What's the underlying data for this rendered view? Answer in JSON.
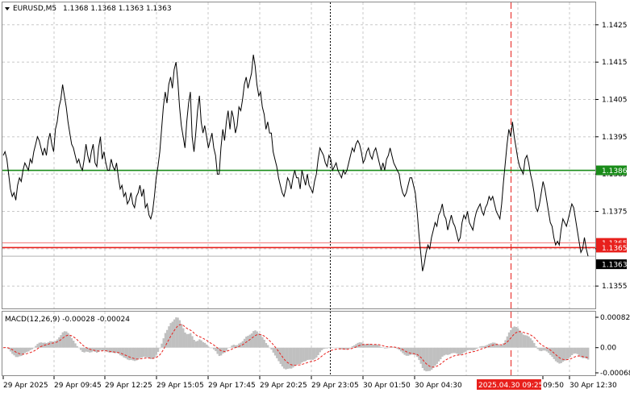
{
  "header": {
    "symbol": "EURUSD,M5",
    "ohlc": "1.1368 1.1368 1.1363 1.1363"
  },
  "price_axis": {
    "ticks": [
      "1.1425",
      "1.1415",
      "1.1405",
      "1.1395",
      "1.1385",
      "1.1375",
      "1.1365",
      "1.1355"
    ]
  },
  "levels": {
    "green": {
      "label": "1.1386",
      "price": 1.1386,
      "color": "#1a8c1a"
    },
    "red": {
      "label": "1.1365",
      "price": 1.13653,
      "color": "#e8201c"
    },
    "red_faint": {
      "label": "1.1365",
      "price": 1.13657,
      "color": "#e8201c"
    },
    "current": {
      "label": "1.1363",
      "price": 1.1363,
      "color": "#000000"
    }
  },
  "macd": {
    "title": "MACD(12,26,9) -0.00028 -0.00024",
    "ticks": [
      "0.00082",
      "0.00",
      "-0.00068"
    ],
    "histogram_color": "#c0c0c0",
    "signal_color": "#e8201c"
  },
  "time_axis": {
    "labels": [
      "29 Apr 2025",
      "29 Apr 09:45",
      "29 Apr 12:25",
      "29 Apr 15:05",
      "29 Apr 17:45",
      "29 Apr 20:25",
      "29 Apr 23:05",
      "30 Apr 01:50",
      "30 Apr 04:30",
      "2025.04.30 09:25",
      "09:50",
      "30 Apr 12:30"
    ],
    "highlight_index": 9
  },
  "markers": {
    "black_dashed_label": "29 Apr 23:05",
    "red_dashed_label": "2025.04.30 09:25"
  },
  "chart_data": {
    "type": "line",
    "title": "EURUSD,M5",
    "x_range": [
      "29 Apr 2025",
      "30 Apr 12:30"
    ],
    "ylim": [
      1.1349,
      1.1431
    ],
    "close": [
      1.139,
      1.1391,
      1.1389,
      1.1385,
      1.1381,
      1.1379,
      1.138,
      1.1378,
      1.1382,
      1.1384,
      1.1383,
      1.1386,
      1.1388,
      1.1387,
      1.1386,
      1.1389,
      1.1388,
      1.1391,
      1.1393,
      1.1395,
      1.1394,
      1.1392,
      1.139,
      1.1392,
      1.139,
      1.1394,
      1.1396,
      1.1393,
      1.1391,
      1.1397,
      1.1399,
      1.1403,
      1.1405,
      1.1409,
      1.1406,
      1.1403,
      1.1399,
      1.1396,
      1.1393,
      1.1392,
      1.139,
      1.1388,
      1.1389,
      1.1387,
      1.1386,
      1.1389,
      1.1393,
      1.139,
      1.1388,
      1.1391,
      1.1393,
      1.1388,
      1.1387,
      1.1392,
      1.1395,
      1.1389,
      1.1391,
      1.1388,
      1.1386,
      1.1386,
      1.1389,
      1.1387,
      1.1386,
      1.1388,
      1.1384,
      1.1381,
      1.1382,
      1.1379,
      1.138,
      1.1377,
      1.1378,
      1.138,
      1.1377,
      1.1376,
      1.1379,
      1.138,
      1.1382,
      1.1379,
      1.1381,
      1.1376,
      1.1377,
      1.1374,
      1.1373,
      1.1375,
      1.1379,
      1.1384,
      1.1387,
      1.1391,
      1.1397,
      1.1403,
      1.1407,
      1.1404,
      1.1409,
      1.1411,
      1.1408,
      1.1413,
      1.1415,
      1.141,
      1.1403,
      1.1398,
      1.1395,
      1.1392,
      1.1399,
      1.1404,
      1.1407,
      1.1395,
      1.1391,
      1.1396,
      1.1402,
      1.1406,
      1.1399,
      1.1396,
      1.1398,
      1.1395,
      1.1392,
      1.1394,
      1.1396,
      1.1392,
      1.139,
      1.1385,
      1.1385,
      1.1392,
      1.1397,
      1.1394,
      1.1399,
      1.1402,
      1.1397,
      1.1402,
      1.14,
      1.1396,
      1.1398,
      1.1403,
      1.1402,
      1.1405,
      1.1409,
      1.1411,
      1.1408,
      1.141,
      1.1412,
      1.1417,
      1.1414,
      1.1409,
      1.1406,
      1.1407,
      1.1403,
      1.1401,
      1.1397,
      1.1399,
      1.1396,
      1.1396,
      1.1391,
      1.1389,
      1.1387,
      1.1384,
      1.1382,
      1.138,
      1.1379,
      1.1381,
      1.1384,
      1.1383,
      1.1381,
      1.1384,
      1.1386,
      1.1384,
      1.1384,
      1.1381,
      1.1386,
      1.1384,
      1.1382,
      1.1385,
      1.1382,
      1.1381,
      1.138,
      1.1383,
      1.1385,
      1.1389,
      1.1392,
      1.1391,
      1.139,
      1.1388,
      1.1387,
      1.139,
      1.1389,
      1.1386,
      1.1387,
      1.1388,
      1.1386,
      1.1385,
      1.1384,
      1.1386,
      1.1385,
      1.1386,
      1.1388,
      1.139,
      1.1392,
      1.1391,
      1.1393,
      1.1394,
      1.1393,
      1.1391,
      1.1388,
      1.1389,
      1.1391,
      1.1392,
      1.139,
      1.1389,
      1.1391,
      1.1392,
      1.139,
      1.1388,
      1.1386,
      1.1388,
      1.1386,
      1.1389,
      1.139,
      1.1392,
      1.139,
      1.1388,
      1.1387,
      1.1386,
      1.1385,
      1.1382,
      1.138,
      1.1379,
      1.138,
      1.1382,
      1.1384,
      1.1384,
      1.1382,
      1.138,
      1.1375,
      1.1369,
      1.1364,
      1.1359,
      1.1361,
      1.1364,
      1.1366,
      1.1365,
      1.1368,
      1.137,
      1.1372,
      1.1371,
      1.1374,
      1.1375,
      1.1377,
      1.1374,
      1.1373,
      1.137,
      1.1372,
      1.1374,
      1.1372,
      1.1371,
      1.1369,
      1.1367,
      1.1368,
      1.1372,
      1.1374,
      1.1373,
      1.1375,
      1.1372,
      1.1371,
      1.137,
      1.1373,
      1.1375,
      1.1376,
      1.1377,
      1.1375,
      1.1374,
      1.1376,
      1.1377,
      1.1379,
      1.1378,
      1.1379,
      1.1377,
      1.1375,
      1.1374,
      1.1373,
      1.1377,
      1.1383,
      1.1388,
      1.1393,
      1.1397,
      1.1395,
      1.1399,
      1.1395,
      1.1392,
      1.1389,
      1.1387,
      1.1386,
      1.1385,
      1.1389,
      1.139,
      1.1388,
      1.1385,
      1.1383,
      1.138,
      1.1376,
      1.1375,
      1.1377,
      1.138,
      1.1383,
      1.1381,
      1.1378,
      1.1375,
      1.1372,
      1.1371,
      1.1368,
      1.1366,
      1.1367,
      1.1366,
      1.137,
      1.1373,
      1.1372,
      1.1371,
      1.1373,
      1.1375,
      1.1377,
      1.1376,
      1.1373,
      1.137,
      1.1367,
      1.1364,
      1.1365,
      1.1368,
      1.1365,
      1.1363
    ]
  }
}
